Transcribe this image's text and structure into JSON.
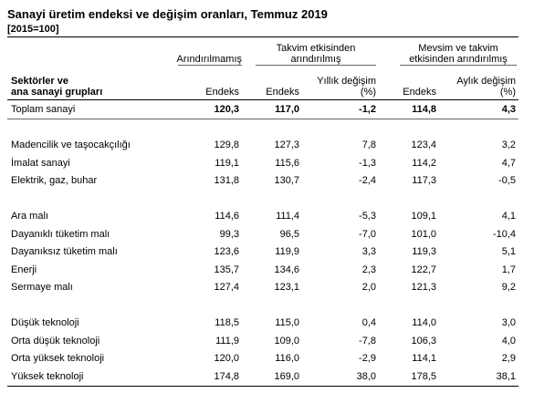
{
  "header": {
    "title": "Sanayi üretim endeksi ve değişim oranları, Temmuz 2019",
    "subtitle": "[2015=100]"
  },
  "table": {
    "group_headers": [
      [
        "Arındırılmamış"
      ],
      [
        "Takvim etkisinden",
        "arındırılmış"
      ],
      [
        "Mevsim ve takvim",
        "etkisinden arındırılmış"
      ]
    ],
    "column_headers": [
      [
        "Sektörler ve",
        "ana sanayi grupları"
      ],
      [
        "Endeks"
      ],
      [
        "Endeks"
      ],
      [
        "Yıllık değişim",
        "(%)"
      ],
      [
        "Endeks"
      ],
      [
        "Aylık değişim",
        "(%)"
      ]
    ],
    "groups": [
      [
        [
          "Toplam sanayi",
          "120,3",
          "117,0",
          "-1,2",
          "114,8",
          "4,3"
        ]
      ],
      [
        [
          "Madencilik ve taşocakçılığı",
          "129,8",
          "127,3",
          "7,8",
          "123,4",
          "3,2"
        ],
        [
          "İmalat sanayi",
          "119,1",
          "115,6",
          "-1,3",
          "114,2",
          "4,7"
        ],
        [
          "Elektrik, gaz, buhar",
          "131,8",
          "130,7",
          "-2,4",
          "117,3",
          "-0,5"
        ]
      ],
      [
        [
          "Ara malı",
          "114,6",
          "111,4",
          "-5,3",
          "109,1",
          "4,1"
        ],
        [
          "Dayanıklı tüketim malı",
          "99,3",
          "96,5",
          "-7,0",
          "101,0",
          "-10,4"
        ],
        [
          "Dayanıksız tüketim malı",
          "123,6",
          "119,9",
          "3,3",
          "119,3",
          "5,1"
        ],
        [
          "Enerji",
          "135,7",
          "134,6",
          "2,3",
          "122,7",
          "1,7"
        ],
        [
          "Sermaye malı",
          "127,4",
          "123,1",
          "2,0",
          "121,3",
          "9,2"
        ]
      ],
      [
        [
          "Düşük teknoloji",
          "118,5",
          "115,0",
          "0,4",
          "114,0",
          "3,0"
        ],
        [
          "Orta düşük teknoloji",
          "111,9",
          "109,0",
          "-7,8",
          "106,3",
          "4,0"
        ],
        [
          "Orta yüksek teknoloji",
          "120,0",
          "116,0",
          "-2,9",
          "114,1",
          "2,9"
        ],
        [
          "Yüksek teknoloji",
          "174,8",
          "169,0",
          "38,0",
          "178,5",
          "38,1"
        ]
      ]
    ]
  }
}
